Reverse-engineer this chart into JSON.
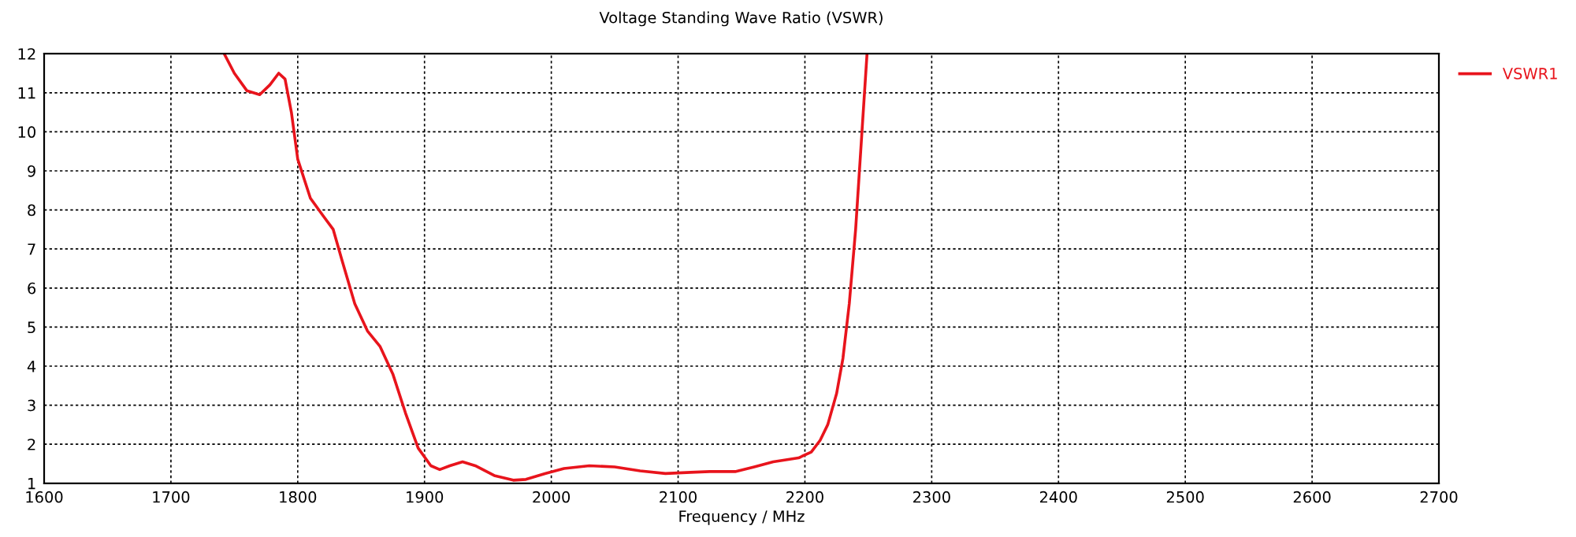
{
  "chart_data": {
    "type": "line",
    "title": "Voltage Standing Wave Ratio (VSWR)",
    "xlabel": "Frequency / MHz",
    "xlim": [
      1600,
      2700
    ],
    "xticks": [
      1600,
      1700,
      1800,
      1900,
      2000,
      2100,
      2200,
      2300,
      2400,
      2500,
      2600,
      2700
    ],
    "ylim": [
      1,
      12
    ],
    "yticks": [
      1,
      2,
      3,
      4,
      5,
      6,
      7,
      8,
      9,
      10,
      11,
      12
    ],
    "grid": true,
    "legend": "top right",
    "line_style": "solid",
    "marker": "none",
    "series": [
      {
        "name": "VSWR1",
        "color": "#e8141c",
        "x": [
          1742,
          1750,
          1760,
          1770,
          1778,
          1785,
          1790,
          1795,
          1800,
          1810,
          1820,
          1828,
          1835,
          1845,
          1855,
          1865,
          1875,
          1885,
          1895,
          1905,
          1912,
          1920,
          1930,
          1940,
          1955,
          1970,
          1980,
          1995,
          2010,
          2030,
          2050,
          2070,
          2090,
          2110,
          2125,
          2145,
          2160,
          2175,
          2195,
          2205,
          2212,
          2218,
          2225,
          2230,
          2235,
          2240,
          2245,
          2249
        ],
        "values": [
          12,
          11.5,
          11.05,
          10.95,
          11.2,
          11.5,
          11.35,
          10.5,
          9.3,
          8.3,
          7.85,
          7.5,
          6.7,
          5.6,
          4.9,
          4.5,
          3.8,
          2.8,
          1.9,
          1.45,
          1.35,
          1.45,
          1.55,
          1.45,
          1.2,
          1.08,
          1.1,
          1.25,
          1.38,
          1.45,
          1.42,
          1.32,
          1.25,
          1.28,
          1.3,
          1.3,
          1.42,
          1.55,
          1.65,
          1.8,
          2.1,
          2.5,
          3.3,
          4.2,
          5.6,
          7.5,
          10,
          12
        ]
      }
    ]
  }
}
